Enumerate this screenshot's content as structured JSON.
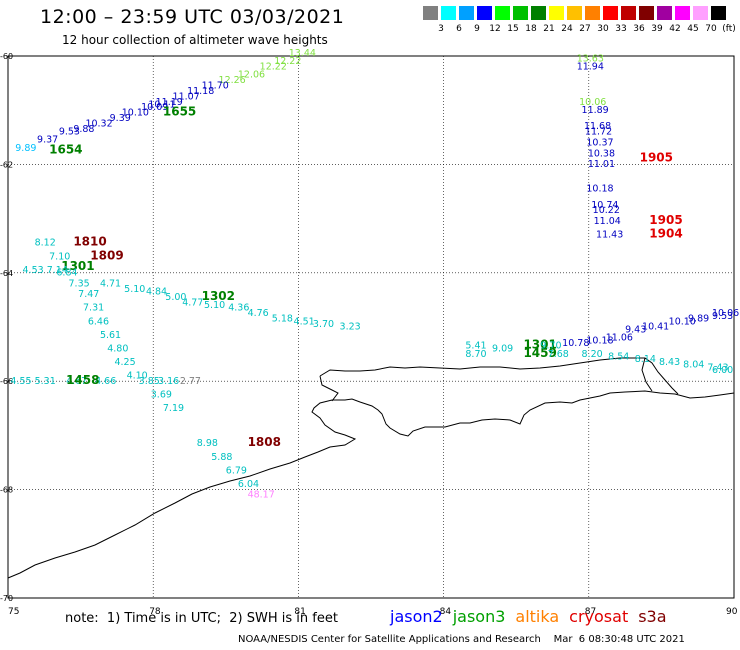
{
  "header": {
    "title": "12:00 – 23:59 UTC 03/03/2021",
    "subtitle": "12 hour collection of altimeter wave heights"
  },
  "legend": {
    "bins": [
      {
        "label": "3",
        "color": "#808080"
      },
      {
        "label": "6",
        "color": "#00ffff"
      },
      {
        "label": "9",
        "color": "#00a0ff"
      },
      {
        "label": "12",
        "color": "#0000ff"
      },
      {
        "label": "15",
        "color": "#00ff00"
      },
      {
        "label": "18",
        "color": "#00c000"
      },
      {
        "label": "21",
        "color": "#008000"
      },
      {
        "label": "24",
        "color": "#ffff00"
      },
      {
        "label": "27",
        "color": "#ffc000"
      },
      {
        "label": "30",
        "color": "#ff8000"
      },
      {
        "label": "33",
        "color": "#ff0000"
      },
      {
        "label": "36",
        "color": "#c00000"
      },
      {
        "label": "39",
        "color": "#800000"
      },
      {
        "label": "42",
        "color": "#a000a0"
      },
      {
        "label": "45",
        "color": "#ff00ff"
      },
      {
        "label": "70",
        "color": "#ffa0ff"
      },
      {
        "label": "(ft)",
        "color": "#000000"
      }
    ]
  },
  "map": {
    "lon_ticks": [
      "75",
      "78",
      "81",
      "84",
      "87",
      "90"
    ],
    "lat_ticks": [
      "-60",
      "-62",
      "-64",
      "-66",
      "-68",
      "-70"
    ],
    "lon_range": [
      75,
      90
    ],
    "lat_range": [
      -60,
      -70
    ],
    "grid": "dotted"
  },
  "observations": [
    {
      "text": "13.44",
      "lon": 80.8,
      "lat": -60.0,
      "color": "#80e040"
    },
    {
      "text": "12.22",
      "lon": 80.5,
      "lat": -60.15,
      "color": "#80e040"
    },
    {
      "text": "12.22",
      "lon": 80.2,
      "lat": -60.25,
      "color": "#80e040"
    },
    {
      "text": "12.06",
      "lon": 79.75,
      "lat": -60.4,
      "color": "#80e040"
    },
    {
      "text": "12.26",
      "lon": 79.35,
      "lat": -60.5,
      "color": "#80e040"
    },
    {
      "text": "11.70",
      "lon": 79.0,
      "lat": -60.6,
      "color": "#0000c0"
    },
    {
      "text": "11.18",
      "lon": 78.7,
      "lat": -60.7,
      "color": "#0000c0"
    },
    {
      "text": "11.07",
      "lon": 78.4,
      "lat": -60.8,
      "color": "#0000c0"
    },
    {
      "text": "11.19",
      "lon": 78.05,
      "lat": -60.9,
      "color": "#0000c0"
    },
    {
      "text": "10.11",
      "lon": 77.9,
      "lat": -60.95,
      "color": "#0000c0"
    },
    {
      "text": "10.09",
      "lon": 77.75,
      "lat": -61.0,
      "color": "#0000c0"
    },
    {
      "text": "10.10",
      "lon": 77.35,
      "lat": -61.1,
      "color": "#0000c0"
    },
    {
      "text": "9.39",
      "lon": 77.1,
      "lat": -61.2,
      "color": "#0000c0"
    },
    {
      "text": "10.32",
      "lon": 76.6,
      "lat": -61.3,
      "color": "#0000c0"
    },
    {
      "text": "9.88",
      "lon": 76.35,
      "lat": -61.4,
      "color": "#0000c0"
    },
    {
      "text": "9.53",
      "lon": 76.05,
      "lat": -61.45,
      "color": "#0000c0"
    },
    {
      "text": "9.37",
      "lon": 75.6,
      "lat": -61.6,
      "color": "#0000c0"
    },
    {
      "text": "9.89",
      "lon": 75.15,
      "lat": -61.75,
      "color": "#00c0ff"
    },
    {
      "text": "1654",
      "lon": 75.85,
      "lat": -61.8,
      "color": "#008000",
      "bold": true
    },
    {
      "text": "1655",
      "lon": 78.2,
      "lat": -61.1,
      "color": "#008000",
      "bold": true
    },
    {
      "text": "13.63",
      "lon": 86.75,
      "lat": -60.1,
      "color": "#80e040"
    },
    {
      "text": "11.94",
      "lon": 86.75,
      "lat": -60.25,
      "color": "#0000c0"
    },
    {
      "text": "10.06",
      "lon": 86.8,
      "lat": -60.9,
      "color": "#80e040"
    },
    {
      "text": "11.89",
      "lon": 86.85,
      "lat": -61.05,
      "color": "#0000c0"
    },
    {
      "text": "11.68",
      "lon": 86.9,
      "lat": -61.35,
      "color": "#0000c0"
    },
    {
      "text": "11.72",
      "lon": 86.92,
      "lat": -61.45,
      "color": "#0000c0"
    },
    {
      "text": "10.37",
      "lon": 86.95,
      "lat": -61.65,
      "color": "#0000c0"
    },
    {
      "text": "10.38",
      "lon": 86.98,
      "lat": -61.85,
      "color": "#0000c0"
    },
    {
      "text": "11.01",
      "lon": 86.98,
      "lat": -62.05,
      "color": "#0000c0"
    },
    {
      "text": "1905",
      "lon": 88.05,
      "lat": -61.95,
      "color": "#e00000",
      "bold": true
    },
    {
      "text": "10.18",
      "lon": 86.95,
      "lat": -62.5,
      "color": "#0000c0"
    },
    {
      "text": "10.74",
      "lon": 87.05,
      "lat": -62.8,
      "color": "#0000c0"
    },
    {
      "text": "10.22",
      "lon": 87.08,
      "lat": -62.9,
      "color": "#0000c0"
    },
    {
      "text": "11.04",
      "lon": 87.1,
      "lat": -63.1,
      "color": "#0000c0"
    },
    {
      "text": "11.43",
      "lon": 87.15,
      "lat": -63.35,
      "color": "#0000c0"
    },
    {
      "text": "1905",
      "lon": 88.25,
      "lat": -63.1,
      "color": "#e00000",
      "bold": true
    },
    {
      "text": "1904",
      "lon": 88.25,
      "lat": -63.35,
      "color": "#e00000",
      "bold": true
    },
    {
      "text": "8.12",
      "lon": 75.55,
      "lat": -63.5,
      "color": "#00c0c0"
    },
    {
      "text": "1810",
      "lon": 76.35,
      "lat": -63.5,
      "color": "#800000",
      "bold": true
    },
    {
      "text": "7.10",
      "lon": 75.85,
      "lat": -63.75,
      "color": "#00c0c0"
    },
    {
      "text": "1809",
      "lon": 76.7,
      "lat": -63.75,
      "color": "#800000",
      "bold": true
    },
    {
      "text": "1301",
      "lon": 76.1,
      "lat": -63.95,
      "color": "#008000",
      "bold": true
    },
    {
      "text": "4.53",
      "lon": 75.3,
      "lat": -64.0,
      "color": "#00c0c0"
    },
    {
      "text": "7.14",
      "lon": 75.8,
      "lat": -64.0,
      "color": "#00c0c0"
    },
    {
      "text": "6.84",
      "lon": 76.0,
      "lat": -64.05,
      "color": "#00c0c0"
    },
    {
      "text": "7.35",
      "lon": 76.25,
      "lat": -64.25,
      "color": "#00c0c0"
    },
    {
      "text": "4.71",
      "lon": 76.9,
      "lat": -64.25,
      "color": "#00c0c0"
    },
    {
      "text": "5.10",
      "lon": 77.4,
      "lat": -64.35,
      "color": "#00c0c0"
    },
    {
      "text": "4.84",
      "lon": 77.85,
      "lat": -64.4,
      "color": "#00c0c0"
    },
    {
      "text": "5.00",
      "lon": 78.25,
      "lat": -64.5,
      "color": "#00c0c0"
    },
    {
      "text": "1302",
      "lon": 79.0,
      "lat": -64.5,
      "color": "#008000",
      "bold": true
    },
    {
      "text": "4.77",
      "lon": 78.6,
      "lat": -64.6,
      "color": "#00c0c0"
    },
    {
      "text": "5.10",
      "lon": 79.05,
      "lat": -64.65,
      "color": "#00c0c0"
    },
    {
      "text": "4.36",
      "lon": 79.55,
      "lat": -64.7,
      "color": "#00c0c0"
    },
    {
      "text": "4.76",
      "lon": 79.95,
      "lat": -64.8,
      "color": "#00c0c0"
    },
    {
      "text": "5.18",
      "lon": 80.45,
      "lat": -64.9,
      "color": "#00c0c0"
    },
    {
      "text": "4.51",
      "lon": 80.9,
      "lat": -64.95,
      "color": "#00c0c0"
    },
    {
      "text": "3.70",
      "lon": 81.3,
      "lat": -65.0,
      "color": "#00c0c0"
    },
    {
      "text": "3.23",
      "lon": 81.85,
      "lat": -65.05,
      "color": "#00c0c0"
    },
    {
      "text": "7.47",
      "lon": 76.45,
      "lat": -64.45,
      "color": "#00c0c0"
    },
    {
      "text": "7.31",
      "lon": 76.55,
      "lat": -64.7,
      "color": "#00c0c0"
    },
    {
      "text": "6.46",
      "lon": 76.65,
      "lat": -64.95,
      "color": "#00c0c0"
    },
    {
      "text": "5.61",
      "lon": 76.9,
      "lat": -65.2,
      "color": "#00c0c0"
    },
    {
      "text": "4.80",
      "lon": 77.05,
      "lat": -65.45,
      "color": "#00c0c0"
    },
    {
      "text": "4.25",
      "lon": 77.2,
      "lat": -65.7,
      "color": "#00c0c0"
    },
    {
      "text": "4.10",
      "lon": 77.45,
      "lat": -65.95,
      "color": "#00c0c0"
    },
    {
      "text": "3.85",
      "lon": 77.7,
      "lat": -66.05,
      "color": "#00c0c0"
    },
    {
      "text": "3.16",
      "lon": 78.1,
      "lat": -66.05,
      "color": "#00c0c0"
    },
    {
      "text": "2.77",
      "lon": 78.55,
      "lat": -66.05,
      "color": "#808080"
    },
    {
      "text": "3.69",
      "lon": 77.95,
      "lat": -66.3,
      "color": "#00c0c0"
    },
    {
      "text": "7.19",
      "lon": 78.2,
      "lat": -66.55,
      "color": "#00c0c0"
    },
    {
      "text": "4.55",
      "lon": 75.05,
      "lat": -66.05,
      "color": "#00c0c0"
    },
    {
      "text": "5.31",
      "lon": 75.55,
      "lat": -66.05,
      "color": "#00c0c0"
    },
    {
      "text": "4.67",
      "lon": 76.2,
      "lat": -66.05,
      "color": "#00c0c0"
    },
    {
      "text": "4.66",
      "lon": 76.8,
      "lat": -66.05,
      "color": "#00c0c0"
    },
    {
      "text": "1458",
      "lon": 76.2,
      "lat": -66.05,
      "color": "#008000",
      "bold": true
    },
    {
      "text": "8.98",
      "lon": 78.9,
      "lat": -67.2,
      "color": "#00c0c0"
    },
    {
      "text": "1808",
      "lon": 79.95,
      "lat": -67.2,
      "color": "#800000",
      "bold": true
    },
    {
      "text": "5.88",
      "lon": 79.2,
      "lat": -67.45,
      "color": "#00c0c0"
    },
    {
      "text": "6.79",
      "lon": 79.5,
      "lat": -67.7,
      "color": "#00c0c0"
    },
    {
      "text": "6.04",
      "lon": 79.75,
      "lat": -67.95,
      "color": "#00c0c0"
    },
    {
      "text": "48.17",
      "lon": 79.95,
      "lat": -68.15,
      "color": "#ff80ff"
    },
    {
      "text": "5.41",
      "lon": 84.45,
      "lat": -65.4,
      "color": "#00c0c0"
    },
    {
      "text": "8.70",
      "lon": 84.45,
      "lat": -65.55,
      "color": "#00c0c0"
    },
    {
      "text": "9.09",
      "lon": 85.0,
      "lat": -65.45,
      "color": "#00c0c0"
    },
    {
      "text": "1301",
      "lon": 85.65,
      "lat": -65.4,
      "color": "#008000",
      "bold": true
    },
    {
      "text": "1459",
      "lon": 85.65,
      "lat": -65.55,
      "color": "#008000",
      "bold": true
    },
    {
      "text": "9.70",
      "lon": 86.0,
      "lat": -65.4,
      "color": "#00c0c0"
    },
    {
      "text": "7.68",
      "lon": 86.15,
      "lat": -65.55,
      "color": "#00c0c0"
    },
    {
      "text": "10.78",
      "lon": 86.45,
      "lat": -65.35,
      "color": "#0000c0"
    },
    {
      "text": "8.20",
      "lon": 86.85,
      "lat": -65.55,
      "color": "#00c0c0"
    },
    {
      "text": "10.18",
      "lon": 86.95,
      "lat": -65.3,
      "color": "#0000c0"
    },
    {
      "text": "11.06",
      "lon": 87.35,
      "lat": -65.25,
      "color": "#0000c0"
    },
    {
      "text": "8.54",
      "lon": 87.4,
      "lat": -65.6,
      "color": "#00c0c0"
    },
    {
      "text": "9.43",
      "lon": 87.75,
      "lat": -65.1,
      "color": "#0000c0"
    },
    {
      "text": "10.41",
      "lon": 88.1,
      "lat": -65.05,
      "color": "#0000c0"
    },
    {
      "text": "8.14",
      "lon": 87.95,
      "lat": -65.65,
      "color": "#00c0c0"
    },
    {
      "text": "10.10",
      "lon": 88.65,
      "lat": -64.95,
      "color": "#0000c0"
    },
    {
      "text": "8.43",
      "lon": 88.45,
      "lat": -65.7,
      "color": "#00c0c0"
    },
    {
      "text": "9.89",
      "lon": 89.05,
      "lat": -64.9,
      "color": "#0000c0"
    },
    {
      "text": "8.04",
      "lon": 88.95,
      "lat": -65.75,
      "color": "#00c0c0"
    },
    {
      "text": "9.53",
      "lon": 89.55,
      "lat": -64.85,
      "color": "#0000c0"
    },
    {
      "text": "7.43",
      "lon": 89.45,
      "lat": -65.8,
      "color": "#00c0c0"
    },
    {
      "text": "10.06",
      "lon": 90.0,
      "lat": -64.8,
      "color": "#0000c0"
    },
    {
      "text": "6.00",
      "lon": 89.95,
      "lat": -65.85,
      "color": "#00c0c0"
    }
  ],
  "footer": {
    "note": "note:  1) Time is in UTC;  2) SWH is in feet",
    "satellites": [
      {
        "name": "jason2",
        "color": "#0000ff"
      },
      {
        "name": "jason3",
        "color": "#00a000"
      },
      {
        "name": "altika",
        "color": "#ff8000"
      },
      {
        "name": "cryosat",
        "color": "#e00000"
      },
      {
        "name": "s3a",
        "color": "#800000"
      }
    ],
    "credit": "NOAA/NESDIS Center for Satellite Applications and Research    Mar  6 08:30:48 UTC 2021"
  }
}
